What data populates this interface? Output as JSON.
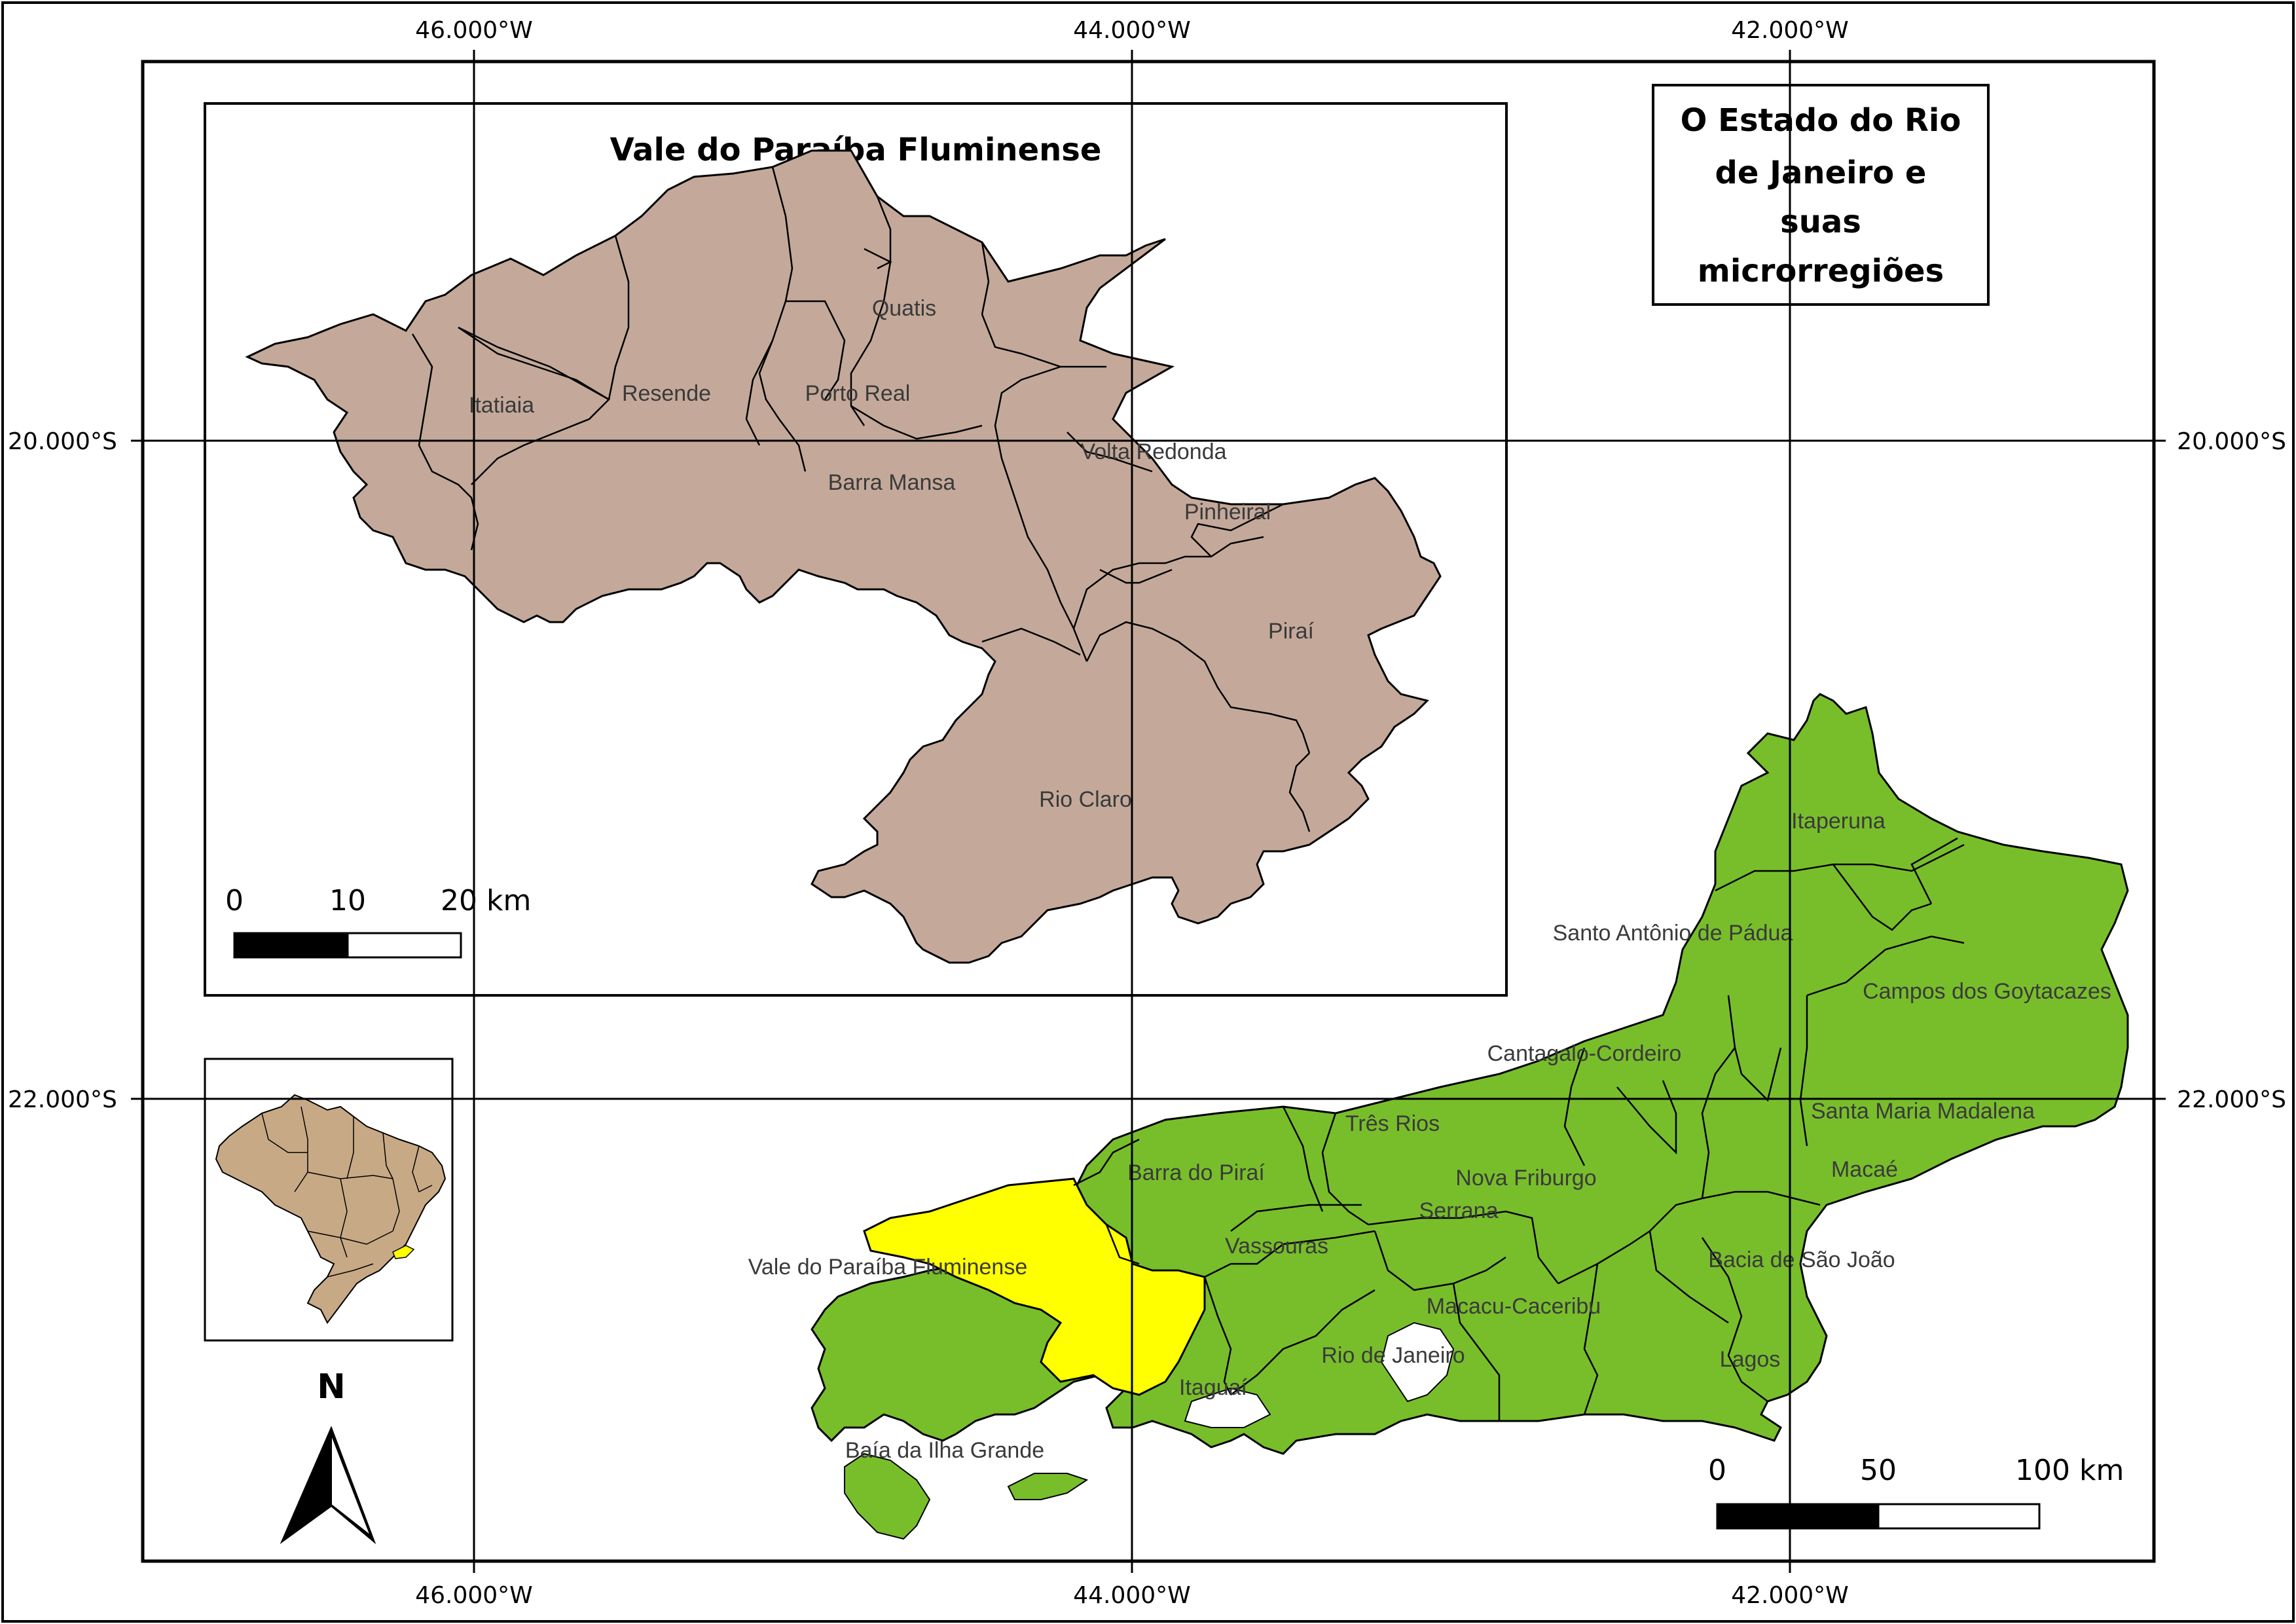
{
  "grid": {
    "longitudes": [
      {
        "label": "46.000°W",
        "value": -46.0
      },
      {
        "label": "44.000°W",
        "value": -44.0
      },
      {
        "label": "42.000°W",
        "value": -42.0
      }
    ],
    "latitudes": [
      {
        "label": "20.000°S",
        "value": -20.0
      },
      {
        "label": "22.000°S",
        "value": -22.0
      }
    ]
  },
  "title_box": {
    "lines": [
      "O Estado do Rio",
      "de Janeiro e",
      "suas",
      "microrregiões"
    ]
  },
  "inset": {
    "title": "Vale do Paraíba Fluminense",
    "municipalities": [
      "Itatiaia",
      "Resende",
      "Quatis",
      "Porto Real",
      "Barra Mansa",
      "Volta Redonda",
      "Pinheiral",
      "Piraí",
      "Rio Claro"
    ],
    "scale_bar": {
      "labels": [
        "0",
        "10",
        "20 km"
      ]
    }
  },
  "microregions": [
    "Itaperuna",
    "Santo Antônio de Pádua",
    "Campos dos Goytacazes",
    "Cantagalo-Cordeiro",
    "Três Rios",
    "Santa Maria Madalena",
    "Barra do Piraí",
    "Nova Friburgo",
    "Macaé",
    "Serrana",
    "Vassouras",
    "Vale do Paraíba Fluminense",
    "Bacia de São João",
    "Macacu-Caceribu",
    "Rio de Janeiro",
    "Lagos",
    "Itaguaí",
    "Baía da Ilha Grande"
  ],
  "main_scale_bar": {
    "labels": [
      "0",
      "50",
      "100 km"
    ]
  },
  "north_arrow": {
    "label": "N"
  },
  "colors": {
    "highlight": "#ffff00",
    "microregions_fill": "#78be2b",
    "inset_fill": "#c4a99a",
    "brazil_fill": "#c8a986",
    "frame": "#000000"
  }
}
